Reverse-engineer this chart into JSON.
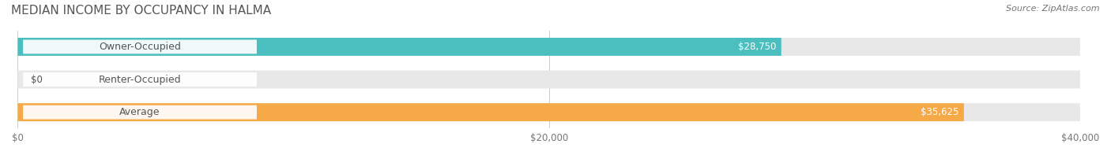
{
  "title": "MEDIAN INCOME BY OCCUPANCY IN HALMA",
  "source": "Source: ZipAtlas.com",
  "categories": [
    "Owner-Occupied",
    "Renter-Occupied",
    "Average"
  ],
  "values": [
    28750,
    0,
    35625
  ],
  "bar_colors": [
    "#4bbfbf",
    "#b8a0c8",
    "#f5a947"
  ],
  "bar_bg_color": "#e8e8e8",
  "label_color": "#555555",
  "value_labels": [
    "$28,750",
    "$0",
    "$35,625"
  ],
  "xlim": [
    0,
    40000
  ],
  "xtick_values": [
    0,
    20000,
    40000
  ],
  "xtick_labels": [
    "$0",
    "$20,000",
    "$40,000"
  ],
  "title_fontsize": 11,
  "source_fontsize": 8,
  "label_fontsize": 9,
  "value_fontsize": 8.5,
  "figsize": [
    14.06,
    1.97
  ],
  "dpi": 100
}
